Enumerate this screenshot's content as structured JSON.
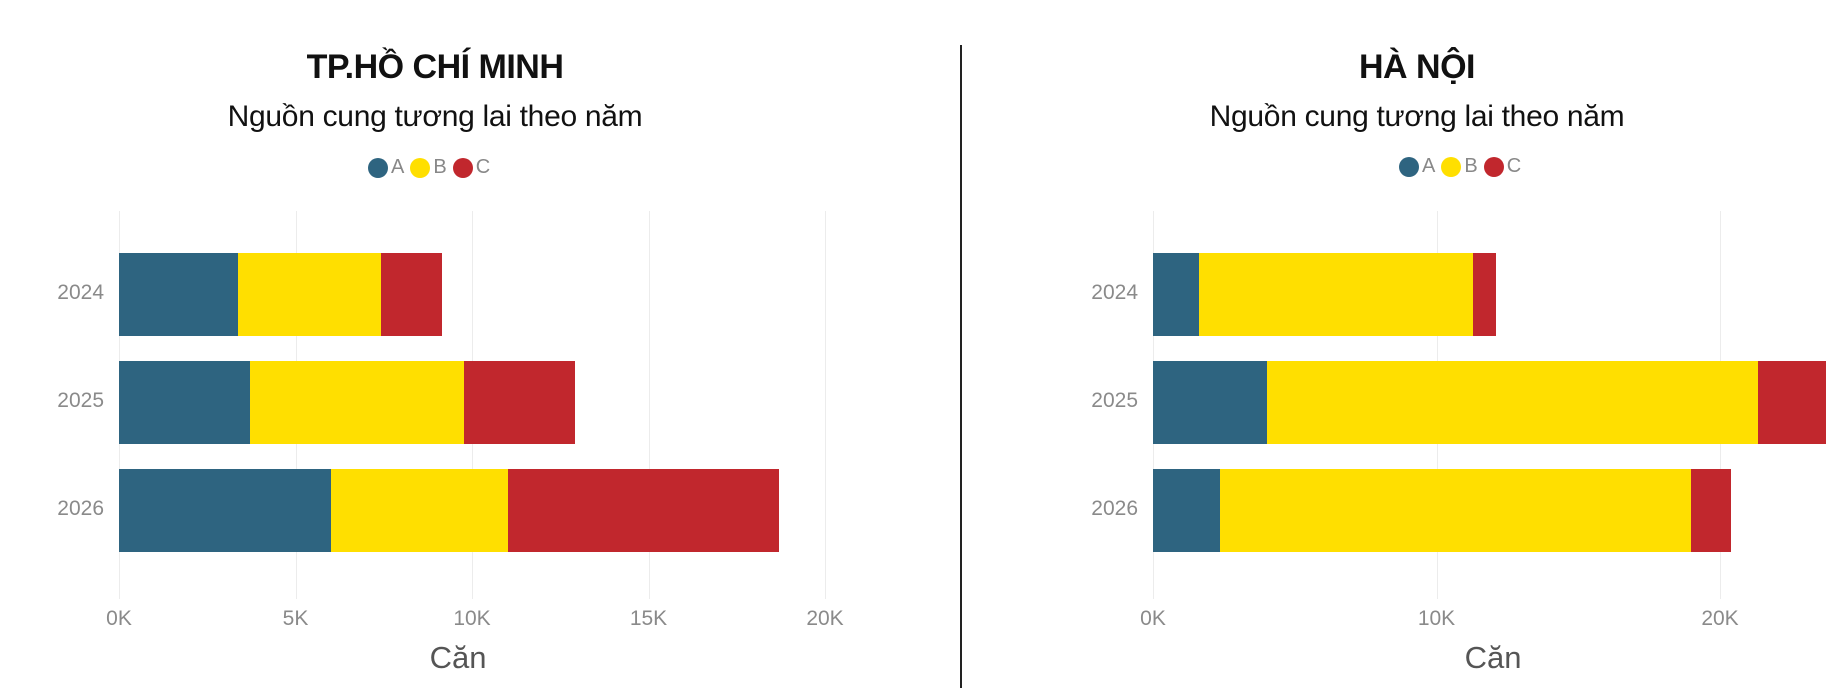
{
  "colors": {
    "A": "#2e6480",
    "B": "#ffdf00",
    "C": "#c1272d"
  },
  "charts": [
    {
      "title": "TP.HỒ CHÍ MINH",
      "subtitle": "Nguồn cung tương lai theo năm",
      "legend": [
        "A",
        "B",
        "C"
      ],
      "xlabel": "Căn",
      "xticks": [
        "0K",
        "5K",
        "10K",
        "15K",
        "20K"
      ],
      "years": [
        "2024",
        "2025",
        "2026"
      ]
    },
    {
      "title": "HÀ NỘI",
      "subtitle": "Nguồn cung tương lai theo năm",
      "legend": [
        "A",
        "B",
        "C"
      ],
      "xlabel": "Căn",
      "xticks": [
        "0K",
        "10K",
        "20K"
      ],
      "years": [
        "2024",
        "2025",
        "2026"
      ]
    }
  ],
  "chart_data": [
    {
      "type": "bar",
      "orientation": "horizontal",
      "stacked": true,
      "title": "TP.HỒ CHÍ MINH",
      "subtitle": "Nguồn cung tương lai theo năm",
      "categories": [
        "2024",
        "2025",
        "2026"
      ],
      "series": [
        {
          "name": "A",
          "color": "#2e6480",
          "values": [
            3360,
            3710,
            6000
          ]
        },
        {
          "name": "B",
          "color": "#ffdf00",
          "values": [
            4060,
            6060,
            5010
          ]
        },
        {
          "name": "C",
          "color": "#c1272d",
          "values": [
            1720,
            3160,
            7690
          ]
        }
      ],
      "xlabel": "Căn",
      "ylabel": "",
      "xticks": [
        "0K",
        "5K",
        "10K",
        "15K",
        "20K"
      ],
      "xlim": [
        0,
        20000
      ],
      "grid": true,
      "legend_position": "top"
    },
    {
      "type": "bar",
      "orientation": "horizontal",
      "stacked": true,
      "title": "HÀ NỘI",
      "subtitle": "Nguồn cung tương lai theo năm",
      "categories": [
        "2024",
        "2025",
        "2026"
      ],
      "series": [
        {
          "name": "A",
          "color": "#2e6480",
          "values": [
            1630,
            4020,
            2350
          ]
        },
        {
          "name": "B",
          "color": "#ffdf00",
          "values": [
            9670,
            17330,
            16610
          ]
        },
        {
          "name": "C",
          "color": "#c1272d",
          "values": [
            810,
            2380,
            1430
          ]
        }
      ],
      "xlabel": "Căn",
      "ylabel": "",
      "xticks": [
        "0K",
        "10K",
        "20K"
      ],
      "xlim": [
        0,
        24000
      ],
      "grid": true,
      "legend_position": "top"
    }
  ]
}
